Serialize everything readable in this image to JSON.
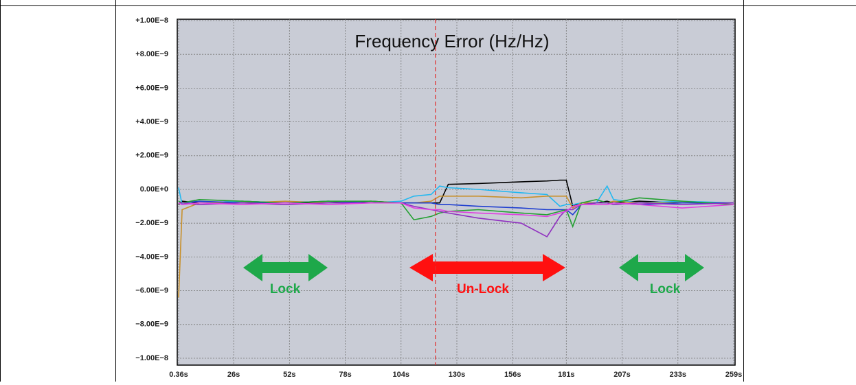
{
  "chart_data": {
    "type": "line",
    "title": "Frequency Error (Hz/Hz)",
    "annotations": [
      "Lock",
      "Un-Lock",
      "Lock"
    ],
    "vline": 120,
    "x": [
      0.36,
      2,
      10,
      30,
      50,
      70,
      90,
      104,
      110,
      118,
      122,
      126,
      140,
      160,
      172,
      178,
      181,
      184,
      188,
      195,
      200,
      203,
      215,
      235,
      259
    ],
    "series": [
      {
        "color": "#000000",
        "values": [
          -9e-10,
          -7e-10,
          -8e-10,
          -7e-10,
          -8e-10,
          -8e-10,
          -7e-10,
          -8e-10,
          -8e-10,
          -8e-10,
          -8e-10,
          3e-10,
          3.5e-10,
          4.5e-10,
          5e-10,
          5.5e-10,
          5.5e-10,
          -1e-09,
          -8e-10,
          -8e-10,
          -7e-10,
          -8e-10,
          -7e-10,
          -8e-10,
          -8e-10
        ]
      },
      {
        "color": "#22b8f0",
        "values": [
          1e-10,
          -9e-10,
          -8e-10,
          -7e-10,
          -8e-10,
          -7e-10,
          -8e-10,
          -7e-10,
          -4e-10,
          -3e-10,
          2e-10,
          1e-10,
          0.0,
          -2e-10,
          -3e-10,
          -1e-09,
          -9e-10,
          -9e-10,
          -8e-10,
          -8e-10,
          2e-10,
          -6e-10,
          -8e-10,
          -7e-10,
          -8e-10
        ]
      },
      {
        "color": "#c8902a",
        "values": [
          -6.4e-09,
          -1.2e-09,
          -8e-10,
          -8e-10,
          -7e-10,
          -8e-10,
          -8e-10,
          -8e-10,
          -8e-10,
          -7e-10,
          -4e-10,
          -4e-10,
          -4e-10,
          -5e-10,
          -4e-10,
          -4e-10,
          -4e-10,
          -1.1e-09,
          -8e-10,
          -8e-10,
          -8e-10,
          -7e-10,
          -8e-10,
          -8e-10,
          -8e-10
        ]
      },
      {
        "color": "#1f3fd0",
        "values": [
          -8e-10,
          -8e-10,
          -7e-10,
          -8e-10,
          -8e-10,
          -7e-10,
          -8e-10,
          -8e-10,
          -8e-10,
          -8e-10,
          -9e-10,
          -9e-10,
          -1e-09,
          -1.1e-09,
          -1.2e-09,
          -1.2e-09,
          -1.2e-09,
          -1.5e-09,
          -9e-10,
          -8e-10,
          -8e-10,
          -8e-10,
          -9e-10,
          -8e-10,
          -8e-10
        ]
      },
      {
        "color": "#22a030",
        "values": [
          -7e-10,
          -8e-10,
          -6e-10,
          -7e-10,
          -8e-10,
          -7e-10,
          -7e-10,
          -8e-10,
          -1.8e-09,
          -1.6e-09,
          -1.4e-09,
          -1.3e-09,
          -1.2e-09,
          -1.4e-09,
          -1.5e-09,
          -1.3e-09,
          -1.2e-09,
          -2.2e-09,
          -8e-10,
          -6e-10,
          -8e-10,
          -8e-10,
          -5e-10,
          -7e-10,
          -9e-10
        ]
      },
      {
        "color": "#9030c0",
        "values": [
          -8e-10,
          -8e-10,
          -9e-10,
          -8e-10,
          -9e-10,
          -8e-10,
          -8e-10,
          -8e-10,
          -1e-09,
          -1.2e-09,
          -1.3e-09,
          -1.4e-09,
          -1.7e-09,
          -2e-09,
          -2.8e-09,
          -1.6e-09,
          -1.2e-09,
          -1.2e-09,
          -9e-10,
          -8e-10,
          -8e-10,
          -9e-10,
          -8e-10,
          -9e-10,
          -8e-10
        ]
      },
      {
        "color": "#e040e0",
        "values": [
          -8e-10,
          -9e-10,
          -8e-10,
          -9e-10,
          -8e-10,
          -9e-10,
          -8e-10,
          -8e-10,
          -1.1e-09,
          -1.2e-09,
          -1.2e-09,
          -1.3e-09,
          -1.4e-09,
          -1.5e-09,
          -1.6e-09,
          -1.4e-09,
          -1.3e-09,
          -1e-09,
          -9e-10,
          -9e-10,
          -9e-10,
          -8e-10,
          -9e-10,
          -1.1e-09,
          -9e-10
        ]
      }
    ],
    "xlim": [
      0.36,
      259
    ],
    "ylim": [
      -1e-08,
      1e-08
    ],
    "xticks": [
      {
        "value": 0.36,
        "label": "0.36s"
      },
      {
        "value": 26,
        "label": "26s"
      },
      {
        "value": 52,
        "label": "52s"
      },
      {
        "value": 78,
        "label": "78s"
      },
      {
        "value": 104,
        "label": "104s"
      },
      {
        "value": 130,
        "label": "130s"
      },
      {
        "value": 156,
        "label": "156s"
      },
      {
        "value": 181,
        "label": "181s"
      },
      {
        "value": 207,
        "label": "207s"
      },
      {
        "value": 233,
        "label": "233s"
      },
      {
        "value": 259,
        "label": "259s"
      }
    ],
    "yticks": [
      {
        "value": 1e-08,
        "label": "+1.00E−8"
      },
      {
        "value": 8e-09,
        "label": "+8.00E−9"
      },
      {
        "value": 6e-09,
        "label": "+6.00E−9"
      },
      {
        "value": 4e-09,
        "label": "+4.00E−9"
      },
      {
        "value": 2e-09,
        "label": "+2.00E−9"
      },
      {
        "value": 0,
        "label": "0.00E+0"
      },
      {
        "value": -2e-09,
        "label": "−2.00E−9"
      },
      {
        "value": -4e-09,
        "label": "−4.00E−9"
      },
      {
        "value": -6e-09,
        "label": "−6.00E−9"
      },
      {
        "value": -8e-09,
        "label": "−8.00E−9"
      },
      {
        "value": -1e-08,
        "label": "−1.00E−8"
      }
    ],
    "grid": true
  }
}
